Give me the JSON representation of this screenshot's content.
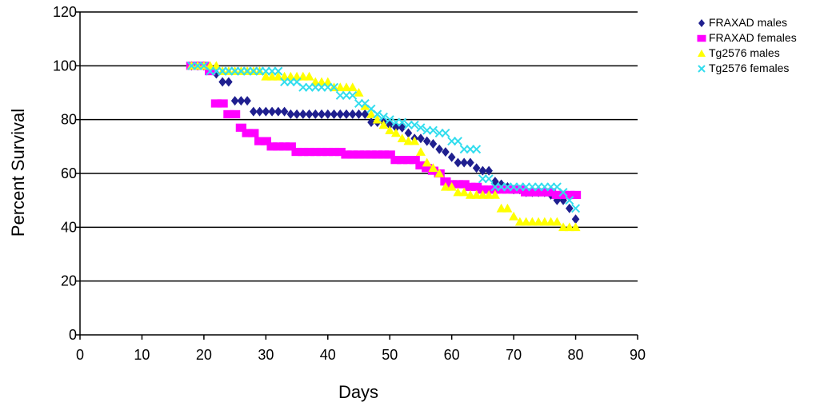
{
  "chart_data": {
    "type": "scatter",
    "title": "",
    "xlabel": "Days",
    "ylabel": "Percent Survival",
    "xlim": [
      0,
      90
    ],
    "ylim": [
      0,
      120
    ],
    "x_ticks": [
      0,
      10,
      20,
      30,
      40,
      50,
      60,
      70,
      80,
      90
    ],
    "y_ticks": [
      0,
      20,
      40,
      60,
      80,
      100,
      120
    ],
    "grid": "horizontal",
    "legend": "top-right",
    "series": [
      {
        "name": "FRAXAD males",
        "color": "#1f1f8f",
        "marker": "diamond",
        "x": [
          18,
          19,
          20,
          21,
          22,
          23,
          24,
          25,
          26,
          27,
          28,
          29,
          30,
          31,
          32,
          33,
          34,
          35,
          36,
          37,
          38,
          39,
          40,
          41,
          42,
          43,
          44,
          45,
          46,
          47,
          48,
          49,
          50,
          51,
          52,
          53,
          54,
          55,
          56,
          57,
          58,
          59,
          60,
          61,
          62,
          63,
          64,
          65,
          66,
          67,
          68,
          69,
          70,
          71,
          72,
          73,
          74,
          75,
          76,
          77,
          78,
          79,
          80
        ],
        "y": [
          100,
          100,
          100,
          99,
          97,
          94,
          94,
          87,
          87,
          87,
          83,
          83,
          83,
          83,
          83,
          83,
          82,
          82,
          82,
          82,
          82,
          82,
          82,
          82,
          82,
          82,
          82,
          82,
          82,
          79,
          79,
          79,
          78,
          77,
          77,
          75,
          73,
          73,
          72,
          71,
          69,
          68,
          66,
          64,
          64,
          64,
          62,
          61,
          61,
          57,
          56,
          55,
          54,
          54,
          53,
          53,
          53,
          53,
          52,
          50,
          50,
          47,
          43
        ]
      },
      {
        "name": "FRAXAD females",
        "color": "#ff00ff",
        "marker": "square",
        "x": [
          18,
          19,
          20,
          21,
          22,
          23,
          24,
          25,
          26,
          27,
          28,
          29,
          30,
          31,
          32,
          33,
          34,
          35,
          36,
          37,
          38,
          39,
          40,
          41,
          42,
          43,
          44,
          45,
          46,
          47,
          48,
          49,
          50,
          51,
          52,
          53,
          54,
          55,
          56,
          57,
          58,
          59,
          60,
          61,
          62,
          63,
          64,
          65,
          66,
          67,
          68,
          69,
          70,
          71,
          72,
          73,
          74,
          75,
          76,
          77,
          78,
          79,
          80
        ],
        "y": [
          100,
          100,
          100,
          98,
          86,
          86,
          82,
          82,
          77,
          75,
          75,
          72,
          72,
          70,
          70,
          70,
          70,
          68,
          68,
          68,
          68,
          68,
          68,
          68,
          68,
          67,
          67,
          67,
          67,
          67,
          67,
          67,
          67,
          65,
          65,
          65,
          65,
          63,
          62,
          61,
          60,
          57,
          56,
          56,
          56,
          55,
          55,
          54,
          54,
          54,
          54,
          54,
          54,
          54,
          53,
          53,
          53,
          53,
          53,
          52,
          52,
          52,
          52
        ]
      },
      {
        "name": "Tg2576 males",
        "color": "#ffff00",
        "marker": "triangle",
        "x": [
          18,
          19,
          20,
          21,
          22,
          23,
          24,
          25,
          26,
          27,
          28,
          29,
          30,
          31,
          32,
          33,
          34,
          35,
          36,
          37,
          38,
          39,
          40,
          41,
          42,
          43,
          44,
          45,
          46,
          47,
          48,
          49,
          50,
          51,
          52,
          53,
          54,
          55,
          56,
          57,
          58,
          59,
          60,
          61,
          62,
          63,
          64,
          65,
          66,
          67,
          68,
          69,
          70,
          71,
          72,
          73,
          74,
          75,
          76,
          77,
          78,
          79,
          80
        ],
        "y": [
          100,
          100,
          100,
          100,
          100,
          98,
          98,
          98,
          98,
          98,
          98,
          98,
          96,
          96,
          96,
          96,
          96,
          96,
          96,
          96,
          94,
          94,
          94,
          92,
          92,
          92,
          92,
          90,
          85,
          82,
          80,
          78,
          76,
          75,
          73,
          72,
          72,
          68,
          64,
          62,
          60,
          55,
          55,
          53,
          53,
          52,
          52,
          52,
          52,
          52,
          47,
          47,
          44,
          42,
          42,
          42,
          42,
          42,
          42,
          42,
          40,
          40,
          40
        ]
      },
      {
        "name": "Tg2576 females",
        "color": "#33ddee",
        "marker": "cross",
        "x": [
          18,
          19,
          20,
          21,
          22,
          23,
          24,
          25,
          26,
          27,
          28,
          29,
          30,
          31,
          32,
          33,
          34,
          35,
          36,
          37,
          38,
          39,
          40,
          41,
          42,
          43,
          44,
          45,
          46,
          47,
          48,
          49,
          50,
          51,
          52,
          53,
          54,
          55,
          56,
          57,
          58,
          59,
          60,
          61,
          62,
          63,
          64,
          65,
          66,
          67,
          68,
          69,
          70,
          71,
          72,
          73,
          74,
          75,
          76,
          77,
          78,
          79,
          80
        ],
        "y": [
          100,
          100,
          100,
          98,
          98,
          98,
          98,
          98,
          98,
          98,
          98,
          98,
          98,
          98,
          98,
          94,
          94,
          94,
          92,
          92,
          92,
          92,
          92,
          92,
          89,
          89,
          89,
          86,
          86,
          84,
          82,
          81,
          80,
          79,
          79,
          78,
          78,
          77,
          76,
          76,
          75,
          75,
          72,
          72,
          69,
          69,
          69,
          58,
          58,
          55,
          55,
          55,
          55,
          55,
          55,
          55,
          55,
          55,
          55,
          55,
          53,
          50,
          47
        ]
      }
    ]
  }
}
